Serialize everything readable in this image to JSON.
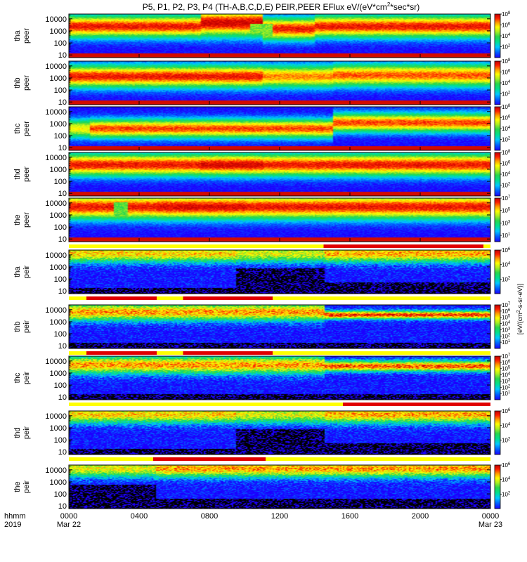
{
  "chart_data": {
    "type": "heatmap",
    "title": "P5, P1, P2, P3, P4 (TH-A,B,C,D,E) PEIR,PEER EFlux eV/(eV*cm^2*sec*sr)",
    "title_parts": {
      "main": "P5, P1, P2, P3, P4 (TH-A,B,C,D,E) PEIR,PEER EFlux eV/(eV*cm",
      "sup": "2",
      "tail": "*sec*sr)"
    },
    "ylim": [
      6,
      25000
    ],
    "ylog": true,
    "ytick_values": [
      10,
      100,
      1000,
      10000
    ],
    "ytick_labels": [
      "10",
      "100",
      "1000",
      "10000"
    ],
    "x_tick_labels": [
      "0000",
      "0400",
      "0800",
      "1200",
      "1600",
      "2000",
      "0000"
    ],
    "x_tick_hours": [
      0,
      4,
      8,
      12,
      16,
      20,
      24
    ],
    "x_date_labels": [
      {
        "hour": 0,
        "text": "Mar 22"
      },
      {
        "hour": 24,
        "text": "Mar 23"
      }
    ],
    "x_axis_label_top": "hhmm",
    "x_axis_label_bottom": "2019",
    "colorbar_label": "[eV/(cm^2-s-sr-eV)]",
    "colorbar_label_parts": {
      "main": "[eV/(cm",
      "sup": "2",
      "tail": "-s-sr-eV)]"
    },
    "colors": {
      "low": "#1c00ff",
      "mid": "#29d64b",
      "yellow": "#ffff00",
      "high": "#ff2000",
      "max": "#c00000",
      "bar_red": "#e00000",
      "bar_yellow": "#ffff00"
    },
    "panels": [
      {
        "ylabel1": "tha",
        "ylabel2": "peer",
        "species": "electron",
        "cbar_max_exp": 8,
        "cbar_exps": [
          2,
          4,
          6,
          8
        ],
        "mode_bar": null
      },
      {
        "ylabel1": "thb",
        "ylabel2": "peer",
        "species": "electron",
        "cbar_max_exp": 8,
        "cbar_exps": [
          2,
          4,
          6,
          8
        ],
        "mode_bar": null
      },
      {
        "ylabel1": "thc",
        "ylabel2": "peer",
        "species": "electron",
        "cbar_max_exp": 8,
        "cbar_exps": [
          2,
          4,
          6,
          8
        ],
        "mode_bar": null
      },
      {
        "ylabel1": "thd",
        "ylabel2": "peer",
        "species": "electron",
        "cbar_max_exp": 8,
        "cbar_exps": [
          2,
          4,
          6,
          8
        ],
        "mode_bar": null
      },
      {
        "ylabel1": "the",
        "ylabel2": "peer",
        "species": "electron",
        "cbar_max_exp": 7,
        "cbar_exps": [
          1,
          3,
          5,
          7
        ],
        "mode_bar": [
          [
            14.5,
            23.6
          ]
        ]
      },
      {
        "ylabel1": "tha",
        "ylabel2": "peir",
        "species": "ion",
        "cbar_max_exp": 6,
        "cbar_exps": [
          2,
          4,
          6
        ],
        "mode_bar": [
          [
            1.0,
            5.0
          ],
          [
            6.5,
            11.6
          ]
        ]
      },
      {
        "ylabel1": "thb",
        "ylabel2": "peir",
        "species": "ion",
        "cbar_max_exp": 7,
        "cbar_exps": [
          1,
          2,
          3,
          4,
          5,
          6,
          7
        ],
        "mode_bar": [
          [
            1.0,
            5.0
          ],
          [
            6.5,
            11.6
          ]
        ]
      },
      {
        "ylabel1": "thc",
        "ylabel2": "peir",
        "species": "ion",
        "cbar_max_exp": 7,
        "cbar_exps": [
          1,
          2,
          3,
          4,
          5,
          6,
          7
        ],
        "mode_bar": [
          [
            15.6,
            24.0
          ]
        ]
      },
      {
        "ylabel1": "thd",
        "ylabel2": "peir",
        "species": "ion",
        "cbar_max_exp": 6,
        "cbar_exps": [
          2,
          4,
          6
        ],
        "mode_bar": [
          [
            4.8,
            11.2
          ]
        ]
      },
      {
        "ylabel1": "the",
        "ylabel2": "peir",
        "species": "ion",
        "cbar_max_exp": 6,
        "cbar_exps": [
          2,
          4,
          6
        ],
        "mode_bar": null
      }
    ]
  }
}
